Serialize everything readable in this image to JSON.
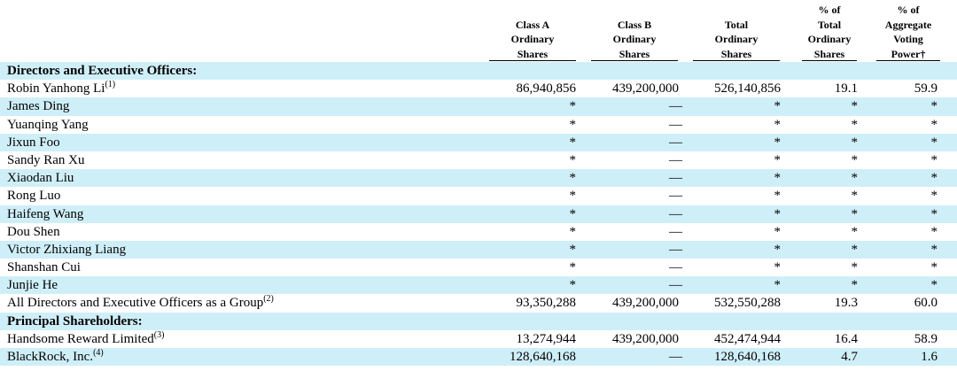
{
  "headers": [
    {
      "lines": [
        "Class A",
        "Ordinary",
        "Shares"
      ]
    },
    {
      "lines": [
        "Class B",
        "Ordinary",
        "Shares"
      ]
    },
    {
      "lines": [
        "Total",
        "Ordinary",
        "Shares"
      ]
    },
    {
      "lines": [
        "% of",
        "Total",
        "Ordinary",
        "Shares"
      ]
    },
    {
      "lines": [
        "% of",
        "Aggregate",
        "Voting",
        "Power†"
      ]
    }
  ],
  "rows": [
    {
      "label": "Directors and Executive Officers:",
      "section": true
    },
    {
      "label": "Robin Yanhong Li",
      "note": "(1)",
      "values": [
        "86,940,856",
        "439,200,000",
        "526,140,856",
        "19.1",
        "59.9"
      ]
    },
    {
      "label": "James Ding",
      "values": [
        "*",
        "—",
        "*",
        "*",
        "*"
      ]
    },
    {
      "label": "Yuanqing Yang",
      "values": [
        "*",
        "—",
        "*",
        "*",
        "*"
      ]
    },
    {
      "label": "Jixun Foo",
      "values": [
        "*",
        "—",
        "*",
        "*",
        "*"
      ]
    },
    {
      "label": "Sandy Ran Xu",
      "values": [
        "*",
        "—",
        "*",
        "*",
        "*"
      ]
    },
    {
      "label": "Xiaodan Liu",
      "values": [
        "*",
        "—",
        "*",
        "*",
        "*"
      ]
    },
    {
      "label": "Rong Luo",
      "values": [
        "*",
        "—",
        "*",
        "*",
        "*"
      ]
    },
    {
      "label": "Haifeng Wang",
      "values": [
        "*",
        "—",
        "*",
        "*",
        "*"
      ]
    },
    {
      "label": "Dou Shen",
      "values": [
        "*",
        "—",
        "*",
        "*",
        "*"
      ]
    },
    {
      "label": "Victor Zhixiang Liang",
      "values": [
        "*",
        "—",
        "*",
        "*",
        "*"
      ]
    },
    {
      "label": "Shanshan Cui",
      "values": [
        "*",
        "—",
        "*",
        "*",
        "*"
      ]
    },
    {
      "label": "Junjie He",
      "values": [
        "*",
        "—",
        "*",
        "*",
        "*"
      ]
    },
    {
      "label": "All Directors and Executive Officers as a Group",
      "note": "(2)",
      "values": [
        "93,350,288",
        "439,200,000",
        "532,550,288",
        "19.3",
        "60.0"
      ]
    },
    {
      "label": "Principal Shareholders:",
      "section": true
    },
    {
      "label": "Handsome Reward Limited",
      "note": "(3)",
      "values": [
        "13,274,944",
        "439,200,000",
        "452,474,944",
        "16.4",
        "58.9"
      ]
    },
    {
      "label": "BlackRock, Inc.",
      "note": "(4)",
      "values": [
        "128,640,168",
        "—",
        "128,640,168",
        "4.7",
        "1.6"
      ]
    }
  ],
  "colors": {
    "shade": "#cfeff8",
    "text": "#000000"
  }
}
